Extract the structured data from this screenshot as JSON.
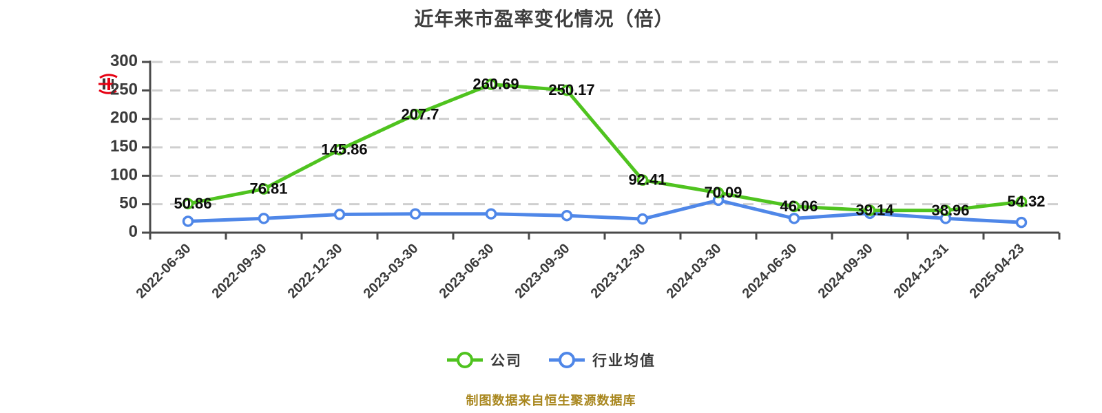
{
  "title": "近年来市盈率变化情况（倍）",
  "footer": "制图数据来自恒生聚源数据库",
  "legend": [
    {
      "label": "公司",
      "color": "#4fc31f"
    },
    {
      "label": "行业均值",
      "color": "#4f87e8"
    }
  ],
  "icons": {
    "watermark": "red-seal-stamp-icon"
  },
  "colors": {
    "company_line": "#4fc31f",
    "industry_line": "#4f87e8",
    "marker_fill": "#ffffff",
    "grid": "#cfcfcf",
    "axis": "#4a4a4a",
    "tick_label": "#3a3a3a",
    "value_label": "#0d0d0d",
    "title": "#3e3e3e",
    "footer": "#a8861d",
    "watermark_red": "#e60012"
  },
  "chart_data": {
    "type": "line",
    "title": "近年来市盈率变化情况（倍）",
    "categories": [
      "2022-06-30",
      "2022-09-30",
      "2022-12-30",
      "2023-03-30",
      "2023-06-30",
      "2023-09-30",
      "2023-12-30",
      "2024-03-30",
      "2024-06-30",
      "2024-09-30",
      "2024-12-31",
      "2025-04-23"
    ],
    "series": [
      {
        "name": "公司",
        "color": "#4fc31f",
        "values": [
          50.86,
          76.81,
          145.86,
          207.7,
          260.69,
          250.17,
          92.41,
          70.09,
          46.06,
          39.14,
          38.96,
          54.32
        ],
        "labels_shown": true
      },
      {
        "name": "行业均值",
        "color": "#4f87e8",
        "values": [
          20,
          25,
          32,
          33,
          33,
          30,
          24,
          57,
          25,
          34,
          25,
          18
        ],
        "labels_shown": false,
        "estimated": true
      }
    ],
    "ylabel": "",
    "xlabel": "",
    "ylim": [
      0,
      300
    ],
    "yticks": [
      0,
      50,
      100,
      150,
      200,
      250,
      300
    ],
    "grid": "horizontal dashed",
    "legend_position": "bottom",
    "x_label_rotation": 45
  }
}
